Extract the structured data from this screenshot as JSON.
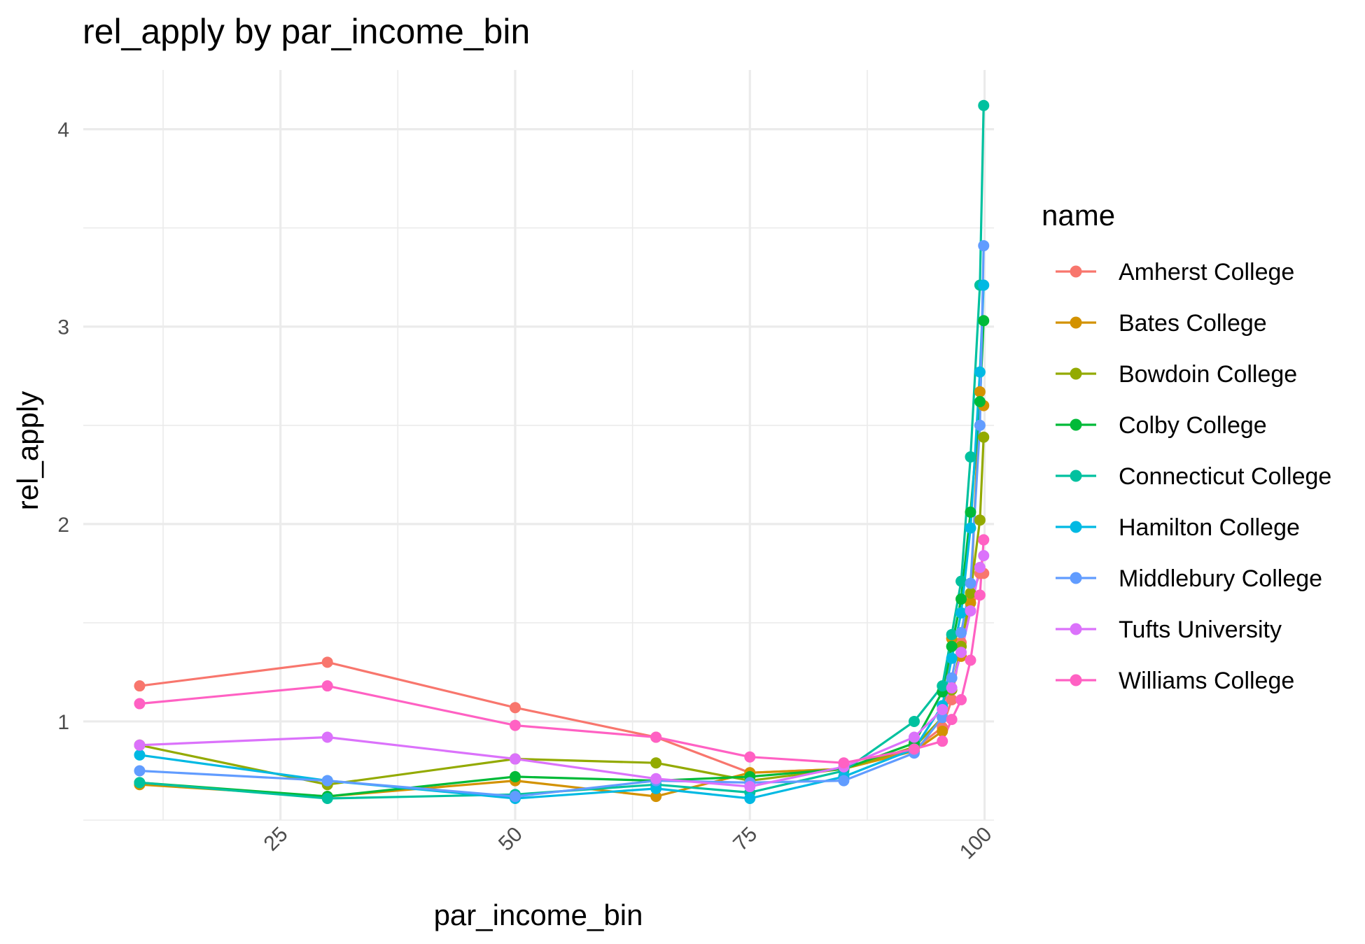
{
  "chart_data": {
    "type": "line",
    "title": "rel_apply by par_income_bin",
    "xlabel": "par_income_bin",
    "ylabel": "rel_apply",
    "xlim": [
      4,
      101
    ],
    "ylim": [
      0.5,
      4.3
    ],
    "x_ticks": [
      25,
      50,
      75,
      100
    ],
    "y_ticks": [
      1,
      2,
      3,
      4
    ],
    "x_tick_labels": [
      "25",
      "50",
      "75",
      "100"
    ],
    "y_tick_labels": [
      "1",
      "2",
      "3",
      "4"
    ],
    "grid": true,
    "legend_title": "name",
    "legend_position": "right",
    "x": [
      10,
      30,
      50,
      65,
      75,
      85,
      92.5,
      95.5,
      96.5,
      97.5,
      98.5,
      99.5,
      99.9
    ],
    "series": [
      {
        "name": "Amherst College",
        "color": "#F8766D",
        "values": [
          1.18,
          1.3,
          1.07,
          0.92,
          0.74,
          0.76,
          0.86,
          0.97,
          1.11,
          1.4,
          1.62,
          1.75,
          1.75
        ]
      },
      {
        "name": "Bates College",
        "color": "#D39200",
        "values": [
          0.68,
          0.62,
          0.7,
          0.62,
          0.74,
          0.76,
          0.85,
          0.95,
          1.42,
          1.33,
          1.6,
          2.67,
          2.6
        ]
      },
      {
        "name": "Bowdoin College",
        "color": "#93AA00",
        "values": [
          0.88,
          0.68,
          0.81,
          0.79,
          0.7,
          0.76,
          0.87,
          1.02,
          1.16,
          1.38,
          1.65,
          2.02,
          2.44
        ]
      },
      {
        "name": "Colby College",
        "color": "#00BA38",
        "values": [
          0.69,
          0.62,
          0.72,
          0.7,
          0.72,
          0.76,
          0.89,
          1.15,
          1.38,
          1.62,
          2.06,
          2.62,
          3.03
        ]
      },
      {
        "name": "Connecticut College",
        "color": "#00C19F",
        "values": [
          0.69,
          0.61,
          0.63,
          0.68,
          0.64,
          0.75,
          1.0,
          1.18,
          1.44,
          1.71,
          2.34,
          3.21,
          4.12
        ]
      },
      {
        "name": "Hamilton College",
        "color": "#00B9E3",
        "values": [
          0.83,
          0.7,
          0.61,
          0.66,
          0.61,
          0.72,
          0.86,
          1.08,
          1.32,
          1.55,
          1.98,
          2.77,
          3.21
        ]
      },
      {
        "name": "Middlebury College",
        "color": "#619CFF",
        "values": [
          0.75,
          0.7,
          0.62,
          0.7,
          0.69,
          0.7,
          0.84,
          1.02,
          1.22,
          1.45,
          1.7,
          2.5,
          3.41
        ]
      },
      {
        "name": "Tufts University",
        "color": "#DB72FB",
        "values": [
          0.88,
          0.92,
          0.81,
          0.71,
          0.67,
          0.77,
          0.92,
          1.06,
          1.17,
          1.35,
          1.56,
          1.78,
          1.84
        ]
      },
      {
        "name": "Williams College",
        "color": "#FF61C3",
        "values": [
          1.09,
          1.18,
          0.98,
          0.92,
          0.82,
          0.79,
          0.86,
          0.9,
          1.01,
          1.11,
          1.31,
          1.64,
          1.92
        ]
      }
    ]
  }
}
